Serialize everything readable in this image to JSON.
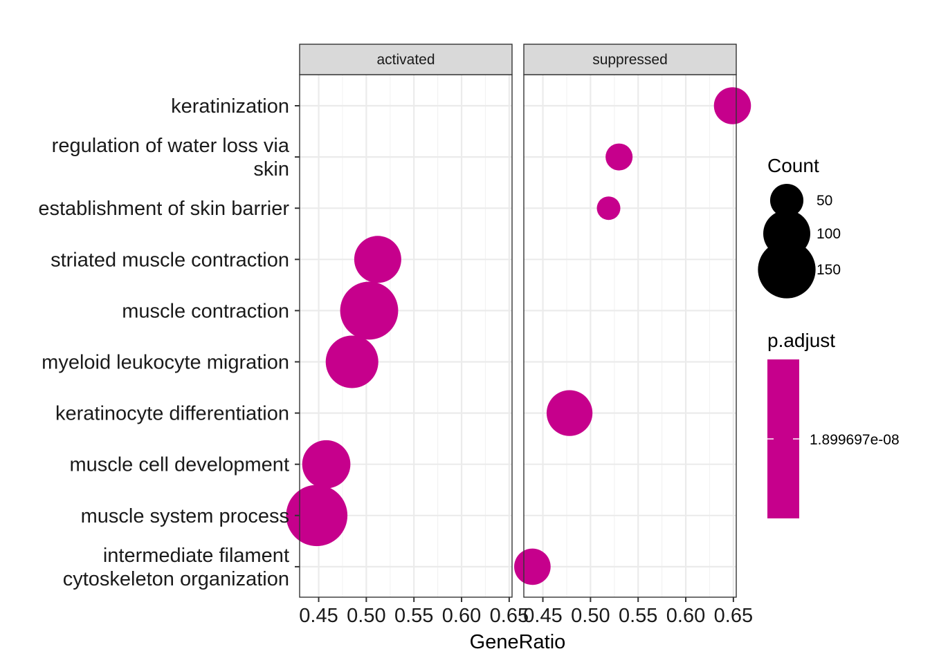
{
  "chart_data": {
    "type": "scatter",
    "xlabel": "GeneRatio",
    "xlim": [
      0.43,
      0.653
    ],
    "xticks": [
      0.45,
      0.5,
      0.55,
      0.6,
      0.65
    ],
    "xtick_labels": [
      "0.45",
      "0.50",
      "0.55",
      "0.60",
      "0.65"
    ],
    "grid": true,
    "facets": [
      "activated",
      "suppressed"
    ],
    "categories": [
      "keratinization",
      "regulation of water loss via skin",
      "establishment of skin barrier",
      "striated muscle contraction",
      "muscle contraction",
      "myeloid leukocyte migration",
      "keratinocyte differentiation",
      "muscle cell development",
      "muscle system process",
      "intermediate filament cytoskeleton organization"
    ],
    "category_lines": [
      [
        "keratinization"
      ],
      [
        "regulation of water loss via",
        "skin"
      ],
      [
        "establishment of skin barrier"
      ],
      [
        "striated muscle contraction"
      ],
      [
        "muscle contraction"
      ],
      [
        "myeloid leukocyte migration"
      ],
      [
        "keratinocyte differentiation"
      ],
      [
        "muscle cell development"
      ],
      [
        "muscle system process"
      ],
      [
        "intermediate filament",
        "cytoskeleton organization"
      ]
    ],
    "points": [
      {
        "facet": "activated",
        "category": "striated muscle contraction",
        "x": 0.512,
        "count": 100
      },
      {
        "facet": "activated",
        "category": "muscle contraction",
        "x": 0.503,
        "count": 152
      },
      {
        "facet": "activated",
        "category": "myeloid leukocyte migration",
        "x": 0.485,
        "count": 125
      },
      {
        "facet": "activated",
        "category": "muscle cell development",
        "x": 0.458,
        "count": 105
      },
      {
        "facet": "activated",
        "category": "muscle system process",
        "x": 0.448,
        "count": 170
      },
      {
        "facet": "suppressed",
        "category": "keratinization",
        "x": 0.649,
        "count": 62
      },
      {
        "facet": "suppressed",
        "category": "regulation of water loss via skin",
        "x": 0.53,
        "count": 33
      },
      {
        "facet": "suppressed",
        "category": "establishment of skin barrier",
        "x": 0.519,
        "count": 25
      },
      {
        "facet": "suppressed",
        "category": "keratinocyte differentiation",
        "x": 0.478,
        "count": 95
      },
      {
        "facet": "suppressed",
        "category": "intermediate filament cytoskeleton organization",
        "x": 0.439,
        "count": 60
      }
    ],
    "legend": {
      "size": {
        "title": "Count",
        "breaks": [
          50,
          100,
          150
        ],
        "labels": [
          "50",
          "100",
          "150"
        ]
      },
      "color": {
        "title": "p.adjust",
        "labels": [
          "1.899697e-08"
        ]
      }
    },
    "colors": {
      "point": "#c6008c"
    }
  }
}
